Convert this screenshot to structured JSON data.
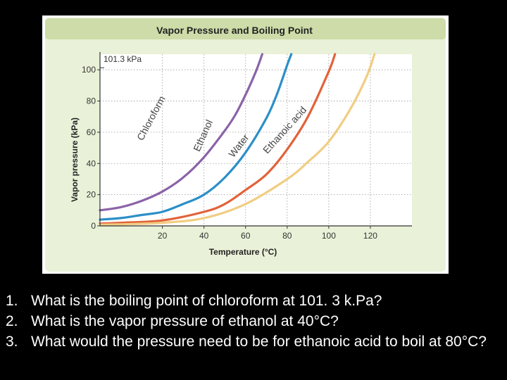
{
  "colors": {
    "background": "#000000",
    "frame": "#e9f1d8",
    "plot": "#ffffff",
    "header": "#cddca8",
    "grid": "#9a9a9a",
    "chloroform": "#8a63a8",
    "ethanol": "#2b8fc8",
    "water": "#e2623a",
    "ethanoic_acid": "#f0cd82",
    "question_text": "#ffffff"
  },
  "chart_data": {
    "type": "line",
    "title": "Vapor Pressure and Boiling Point",
    "xlabel": "Temperature (°C)",
    "ylabel": "Vapor pressure (kPa)",
    "xlim": [
      -10,
      140
    ],
    "ylim": [
      0,
      110
    ],
    "x_ticks": [
      20,
      40,
      60,
      80,
      100,
      120
    ],
    "y_ticks": [
      0,
      20,
      40,
      60,
      80,
      100
    ],
    "x_tick_labels": [
      "20",
      "40",
      "60",
      "80",
      "100",
      "120"
    ],
    "y_tick_labels": [
      "0",
      "20",
      "40",
      "60",
      "80",
      "100"
    ],
    "reference_line": {
      "value": 101.3,
      "label": "101.3 kPa"
    },
    "grid": true,
    "series": [
      {
        "name": "Chloroform",
        "label": "Chloroform",
        "color": "#8a63a8",
        "points": [
          [
            -10,
            10
          ],
          [
            0,
            12
          ],
          [
            10,
            16
          ],
          [
            20,
            22
          ],
          [
            30,
            31
          ],
          [
            40,
            44
          ],
          [
            50,
            61
          ],
          [
            55,
            71
          ],
          [
            60,
            84
          ],
          [
            65,
            99
          ],
          [
            68,
            110
          ]
        ]
      },
      {
        "name": "Ethanol",
        "label": "Ethanol",
        "color": "#2b8fc8",
        "points": [
          [
            -10,
            4
          ],
          [
            0,
            5
          ],
          [
            10,
            7
          ],
          [
            20,
            9
          ],
          [
            30,
            14
          ],
          [
            40,
            20
          ],
          [
            50,
            31
          ],
          [
            60,
            47
          ],
          [
            70,
            69
          ],
          [
            75,
            84
          ],
          [
            80,
            103
          ],
          [
            82,
            110
          ]
        ]
      },
      {
        "name": "Water",
        "label": "Water",
        "color": "#e2623a",
        "points": [
          [
            -10,
            1.5
          ],
          [
            0,
            2
          ],
          [
            20,
            3.5
          ],
          [
            40,
            9
          ],
          [
            50,
            14
          ],
          [
            60,
            23
          ],
          [
            70,
            33
          ],
          [
            80,
            49
          ],
          [
            90,
            70
          ],
          [
            100,
            99
          ],
          [
            103,
            110
          ]
        ]
      },
      {
        "name": "Ethanoic acid",
        "label": "Ethanoic acid",
        "color": "#f0cd82",
        "points": [
          [
            -10,
            0.8
          ],
          [
            0,
            1
          ],
          [
            20,
            2
          ],
          [
            40,
            5
          ],
          [
            60,
            14
          ],
          [
            80,
            30
          ],
          [
            90,
            41
          ],
          [
            100,
            54
          ],
          [
            110,
            74
          ],
          [
            118,
            95
          ],
          [
            122,
            110
          ]
        ]
      }
    ]
  },
  "questions": [
    {
      "num": "1.",
      "text": "What is the boiling point of chloroform at 101. 3 k.Pa?"
    },
    {
      "num": "2.",
      "text": "What is the vapor pressure of ethanol at 40°C?"
    },
    {
      "num": "3.",
      "text": "What would the pressure need to be for ethanoic acid to boil at 80°C?"
    }
  ]
}
